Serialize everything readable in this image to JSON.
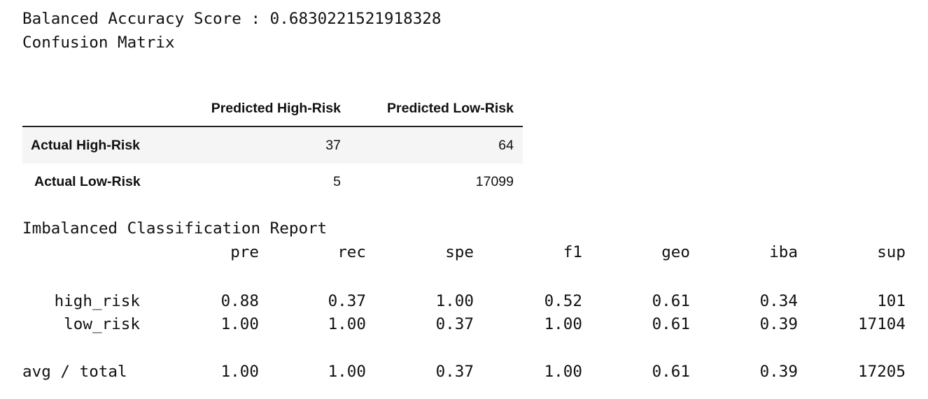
{
  "score_line": "Balanced Accuracy Score : 0.6830221521918328",
  "cm_title": "Confusion Matrix",
  "confusion_matrix": {
    "columns": [
      "Predicted High-Risk",
      "Predicted Low-Risk"
    ],
    "rows": [
      {
        "label": "Actual High-Risk",
        "values": [
          "37",
          "64"
        ]
      },
      {
        "label": "Actual Low-Risk",
        "values": [
          "5",
          "17099"
        ]
      }
    ]
  },
  "report": {
    "title": "Imbalanced Classification Report",
    "headers": [
      "pre",
      "rec",
      "spe",
      "f1",
      "geo",
      "iba",
      "sup"
    ],
    "rows": [
      {
        "label": "high_risk",
        "values": [
          "0.88",
          "0.37",
          "1.00",
          "0.52",
          "0.61",
          "0.34",
          "101"
        ]
      },
      {
        "label": "low_risk",
        "values": [
          "1.00",
          "1.00",
          "0.37",
          "1.00",
          "0.61",
          "0.39",
          "17104"
        ]
      }
    ],
    "total": {
      "label": "avg / total",
      "values": [
        "1.00",
        "1.00",
        "0.37",
        "1.00",
        "0.61",
        "0.39",
        "17205"
      ]
    }
  }
}
